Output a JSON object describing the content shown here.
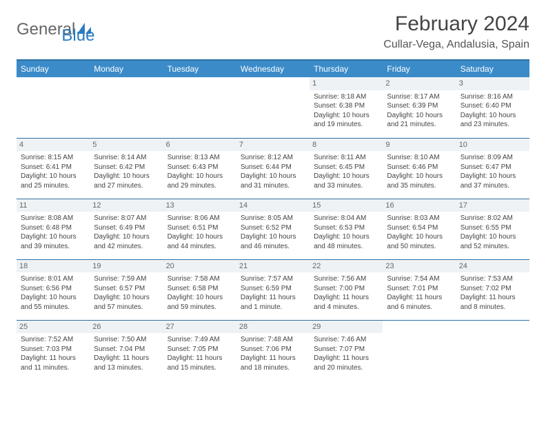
{
  "brand": {
    "text1": "General",
    "text2": "Blue",
    "icon_color": "#2b7bbf"
  },
  "title": "February 2024",
  "location": "Cullar-Vega, Andalusia, Spain",
  "colors": {
    "header_bg": "#3b8bc9",
    "header_border": "#2b6fa3",
    "daynum_bg": "#eef2f5"
  },
  "weekdays": [
    "Sunday",
    "Monday",
    "Tuesday",
    "Wednesday",
    "Thursday",
    "Friday",
    "Saturday"
  ],
  "weeks": [
    [
      {
        "empty": true
      },
      {
        "empty": true
      },
      {
        "empty": true
      },
      {
        "empty": true
      },
      {
        "day": "1",
        "sunrise": "Sunrise: 8:18 AM",
        "sunset": "Sunset: 6:38 PM",
        "daylight": "Daylight: 10 hours and 19 minutes."
      },
      {
        "day": "2",
        "sunrise": "Sunrise: 8:17 AM",
        "sunset": "Sunset: 6:39 PM",
        "daylight": "Daylight: 10 hours and 21 minutes."
      },
      {
        "day": "3",
        "sunrise": "Sunrise: 8:16 AM",
        "sunset": "Sunset: 6:40 PM",
        "daylight": "Daylight: 10 hours and 23 minutes."
      }
    ],
    [
      {
        "day": "4",
        "sunrise": "Sunrise: 8:15 AM",
        "sunset": "Sunset: 6:41 PM",
        "daylight": "Daylight: 10 hours and 25 minutes."
      },
      {
        "day": "5",
        "sunrise": "Sunrise: 8:14 AM",
        "sunset": "Sunset: 6:42 PM",
        "daylight": "Daylight: 10 hours and 27 minutes."
      },
      {
        "day": "6",
        "sunrise": "Sunrise: 8:13 AM",
        "sunset": "Sunset: 6:43 PM",
        "daylight": "Daylight: 10 hours and 29 minutes."
      },
      {
        "day": "7",
        "sunrise": "Sunrise: 8:12 AM",
        "sunset": "Sunset: 6:44 PM",
        "daylight": "Daylight: 10 hours and 31 minutes."
      },
      {
        "day": "8",
        "sunrise": "Sunrise: 8:11 AM",
        "sunset": "Sunset: 6:45 PM",
        "daylight": "Daylight: 10 hours and 33 minutes."
      },
      {
        "day": "9",
        "sunrise": "Sunrise: 8:10 AM",
        "sunset": "Sunset: 6:46 PM",
        "daylight": "Daylight: 10 hours and 35 minutes."
      },
      {
        "day": "10",
        "sunrise": "Sunrise: 8:09 AM",
        "sunset": "Sunset: 6:47 PM",
        "daylight": "Daylight: 10 hours and 37 minutes."
      }
    ],
    [
      {
        "day": "11",
        "sunrise": "Sunrise: 8:08 AM",
        "sunset": "Sunset: 6:48 PM",
        "daylight": "Daylight: 10 hours and 39 minutes."
      },
      {
        "day": "12",
        "sunrise": "Sunrise: 8:07 AM",
        "sunset": "Sunset: 6:49 PM",
        "daylight": "Daylight: 10 hours and 42 minutes."
      },
      {
        "day": "13",
        "sunrise": "Sunrise: 8:06 AM",
        "sunset": "Sunset: 6:51 PM",
        "daylight": "Daylight: 10 hours and 44 minutes."
      },
      {
        "day": "14",
        "sunrise": "Sunrise: 8:05 AM",
        "sunset": "Sunset: 6:52 PM",
        "daylight": "Daylight: 10 hours and 46 minutes."
      },
      {
        "day": "15",
        "sunrise": "Sunrise: 8:04 AM",
        "sunset": "Sunset: 6:53 PM",
        "daylight": "Daylight: 10 hours and 48 minutes."
      },
      {
        "day": "16",
        "sunrise": "Sunrise: 8:03 AM",
        "sunset": "Sunset: 6:54 PM",
        "daylight": "Daylight: 10 hours and 50 minutes."
      },
      {
        "day": "17",
        "sunrise": "Sunrise: 8:02 AM",
        "sunset": "Sunset: 6:55 PM",
        "daylight": "Daylight: 10 hours and 52 minutes."
      }
    ],
    [
      {
        "day": "18",
        "sunrise": "Sunrise: 8:01 AM",
        "sunset": "Sunset: 6:56 PM",
        "daylight": "Daylight: 10 hours and 55 minutes."
      },
      {
        "day": "19",
        "sunrise": "Sunrise: 7:59 AM",
        "sunset": "Sunset: 6:57 PM",
        "daylight": "Daylight: 10 hours and 57 minutes."
      },
      {
        "day": "20",
        "sunrise": "Sunrise: 7:58 AM",
        "sunset": "Sunset: 6:58 PM",
        "daylight": "Daylight: 10 hours and 59 minutes."
      },
      {
        "day": "21",
        "sunrise": "Sunrise: 7:57 AM",
        "sunset": "Sunset: 6:59 PM",
        "daylight": "Daylight: 11 hours and 1 minute."
      },
      {
        "day": "22",
        "sunrise": "Sunrise: 7:56 AM",
        "sunset": "Sunset: 7:00 PM",
        "daylight": "Daylight: 11 hours and 4 minutes."
      },
      {
        "day": "23",
        "sunrise": "Sunrise: 7:54 AM",
        "sunset": "Sunset: 7:01 PM",
        "daylight": "Daylight: 11 hours and 6 minutes."
      },
      {
        "day": "24",
        "sunrise": "Sunrise: 7:53 AM",
        "sunset": "Sunset: 7:02 PM",
        "daylight": "Daylight: 11 hours and 8 minutes."
      }
    ],
    [
      {
        "day": "25",
        "sunrise": "Sunrise: 7:52 AM",
        "sunset": "Sunset: 7:03 PM",
        "daylight": "Daylight: 11 hours and 11 minutes."
      },
      {
        "day": "26",
        "sunrise": "Sunrise: 7:50 AM",
        "sunset": "Sunset: 7:04 PM",
        "daylight": "Daylight: 11 hours and 13 minutes."
      },
      {
        "day": "27",
        "sunrise": "Sunrise: 7:49 AM",
        "sunset": "Sunset: 7:05 PM",
        "daylight": "Daylight: 11 hours and 15 minutes."
      },
      {
        "day": "28",
        "sunrise": "Sunrise: 7:48 AM",
        "sunset": "Sunset: 7:06 PM",
        "daylight": "Daylight: 11 hours and 18 minutes."
      },
      {
        "day": "29",
        "sunrise": "Sunrise: 7:46 AM",
        "sunset": "Sunset: 7:07 PM",
        "daylight": "Daylight: 11 hours and 20 minutes."
      },
      {
        "empty": true
      },
      {
        "empty": true
      }
    ]
  ]
}
